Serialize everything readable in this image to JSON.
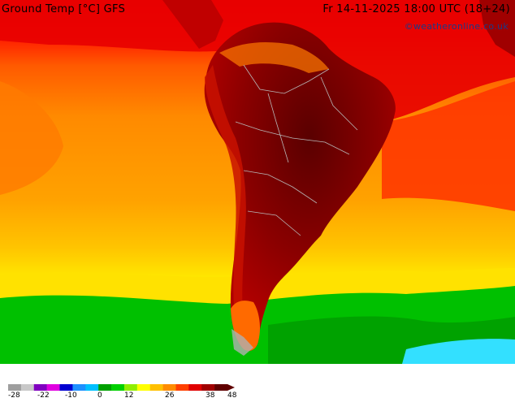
{
  "map": {
    "alt": "Ground temperature forecast map over South America",
    "colors": {
      "very_hot": "#7a0000",
      "hot": "#c00000",
      "warm_red": "#ff0000",
      "orange_red": "#ff4400",
      "orange": "#ff8c00",
      "light_orange": "#ffa500",
      "yellow_orange": "#ffc000",
      "yellow": "#ffea00",
      "green": "#00cc00",
      "dark_green": "#009900",
      "cyan": "#33e0ff",
      "gray": "#b0b0b0",
      "border": "#b8b8b8"
    }
  },
  "footer": {
    "title": "Ground Temp [°C] GFS",
    "datetime": "Fr 14-11-2025 18:00 UTC (18+24)",
    "credit": "©weatheronline.co.uk"
  },
  "legend": {
    "ticks": [
      "-28",
      "-22",
      "-10",
      "0",
      "12",
      "26",
      "38",
      "48"
    ],
    "colors": [
      "#9e9e9e",
      "#c8c8c8",
      "#8000c0",
      "#e000e0",
      "#0000d0",
      "#1e90ff",
      "#00c0ff",
      "#00a000",
      "#00d000",
      "#90ee00",
      "#ffff00",
      "#ffc000",
      "#ff8c00",
      "#ff4000",
      "#e00000",
      "#a00000",
      "#600000"
    ]
  }
}
